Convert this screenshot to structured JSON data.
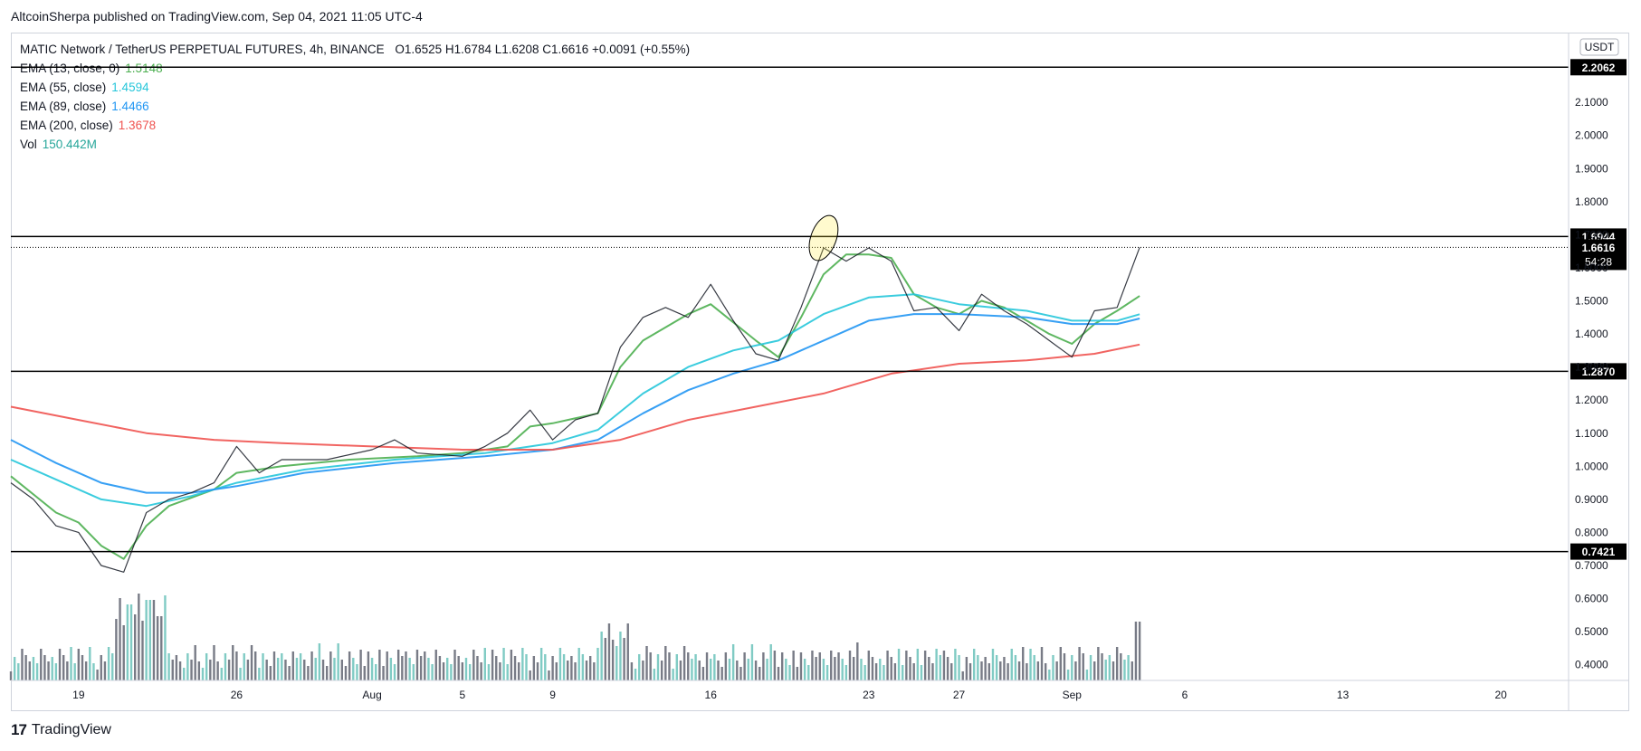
{
  "header": {
    "published": "AltcoinSherpa published on TradingView.com, Sep 04, 2021 11:05 UTC-4"
  },
  "legend": {
    "symbol": "MATIC Network / TetherUS PERPETUAL FUTURES, 4h, BINANCE",
    "ohlc": "O1.6525  H1.6784  L1.6208  C1.6616  +0.0091 (+0.55%)",
    "indicators": [
      {
        "label": "EMA (13, close, 0)",
        "value": "1.5148",
        "color": "#4caf50"
      },
      {
        "label": "EMA (55, close)",
        "value": "1.4594",
        "color": "#26c6da"
      },
      {
        "label": "EMA (89, close)",
        "value": "1.4466",
        "color": "#2196f3"
      },
      {
        "label": "EMA (200, close)",
        "value": "1.3678",
        "color": "#ef5350"
      },
      {
        "label": "Vol",
        "value": "150.442M",
        "color": "#26a69a"
      }
    ]
  },
  "footer": {
    "brand": "TradingView",
    "logo": "tradingview-logo-icon"
  },
  "chart_data": {
    "type": "line",
    "currency_label": "USDT",
    "ylim": [
      0.38,
      2.3
    ],
    "y_ticks": [
      0.4,
      0.5,
      0.6,
      0.7,
      0.8,
      0.9,
      1.0,
      1.1,
      1.2,
      1.3,
      1.4,
      1.5,
      1.6,
      1.7,
      1.8,
      1.9,
      2.0,
      2.1
    ],
    "y_tick_labels": [
      "0.4000",
      "0.5000",
      "0.6000",
      "0.7000",
      "0.8000",
      "0.9000",
      "1.0000",
      "1.1000",
      "1.2000",
      "1.3000",
      "1.4000",
      "1.5000",
      "1.6000",
      "1.7000",
      "1.8000",
      "1.9000",
      "2.0000",
      "2.1000"
    ],
    "x_range": [
      "2021-07-16",
      "2021-09-23"
    ],
    "x_ticks": [
      {
        "date": "2021-07-19",
        "label": "19"
      },
      {
        "date": "2021-07-26",
        "label": "26"
      },
      {
        "date": "2021-08-01",
        "label": "Aug"
      },
      {
        "date": "2021-08-05",
        "label": "5"
      },
      {
        "date": "2021-08-09",
        "label": "9"
      },
      {
        "date": "2021-08-16",
        "label": "16"
      },
      {
        "date": "2021-08-23",
        "label": "23"
      },
      {
        "date": "2021-08-27",
        "label": "27"
      },
      {
        "date": "2021-09-01",
        "label": "Sep"
      },
      {
        "date": "2021-09-06",
        "label": "6"
      },
      {
        "date": "2021-09-13",
        "label": "13"
      },
      {
        "date": "2021-09-20",
        "label": "20"
      }
    ],
    "horizontal_levels": [
      {
        "value": 2.2062,
        "label": "2.2062"
      },
      {
        "value": 1.6944,
        "label": "1.6944"
      },
      {
        "value": 1.287,
        "label": "1.2870"
      },
      {
        "value": 0.7421,
        "label": "0.7421"
      }
    ],
    "last_price": {
      "value": 1.6616,
      "label": "1.6616",
      "countdown": "54:28"
    },
    "highlight_ellipse": {
      "date": "2021-08-21",
      "center_value": 1.69
    },
    "series": [
      {
        "name": "EMA (13, close, 0)",
        "color": "#4caf50",
        "points": [
          [
            "2021-07-16",
            0.97
          ],
          [
            "2021-07-18",
            0.86
          ],
          [
            "2021-07-19",
            0.83
          ],
          [
            "2021-07-20",
            0.76
          ],
          [
            "2021-07-21",
            0.72
          ],
          [
            "2021-07-22",
            0.82
          ],
          [
            "2021-07-23",
            0.88
          ],
          [
            "2021-07-25",
            0.93
          ],
          [
            "2021-07-26",
            0.98
          ],
          [
            "2021-07-28",
            1.0
          ],
          [
            "2021-07-31",
            1.02
          ],
          [
            "2021-08-03",
            1.03
          ],
          [
            "2021-08-05",
            1.04
          ],
          [
            "2021-08-07",
            1.06
          ],
          [
            "2021-08-08",
            1.12
          ],
          [
            "2021-08-09",
            1.13
          ],
          [
            "2021-08-11",
            1.16
          ],
          [
            "2021-08-12",
            1.3
          ],
          [
            "2021-08-13",
            1.38
          ],
          [
            "2021-08-15",
            1.46
          ],
          [
            "2021-08-16",
            1.49
          ],
          [
            "2021-08-18",
            1.38
          ],
          [
            "2021-08-19",
            1.33
          ],
          [
            "2021-08-20",
            1.45
          ],
          [
            "2021-08-21",
            1.58
          ],
          [
            "2021-08-22",
            1.64
          ],
          [
            "2021-08-23",
            1.64
          ],
          [
            "2021-08-24",
            1.63
          ],
          [
            "2021-08-25",
            1.52
          ],
          [
            "2021-08-26",
            1.48
          ],
          [
            "2021-08-27",
            1.46
          ],
          [
            "2021-08-28",
            1.5
          ],
          [
            "2021-08-29",
            1.48
          ],
          [
            "2021-08-30",
            1.44
          ],
          [
            "2021-08-31",
            1.4
          ],
          [
            "2021-09-01",
            1.37
          ],
          [
            "2021-09-02",
            1.43
          ],
          [
            "2021-09-03",
            1.47
          ],
          [
            "2021-09-04",
            1.5148
          ]
        ]
      },
      {
        "name": "EMA (55, close)",
        "color": "#26c6da",
        "points": [
          [
            "2021-07-16",
            1.02
          ],
          [
            "2021-07-18",
            0.96
          ],
          [
            "2021-07-20",
            0.9
          ],
          [
            "2021-07-22",
            0.88
          ],
          [
            "2021-07-24",
            0.91
          ],
          [
            "2021-07-26",
            0.95
          ],
          [
            "2021-07-29",
            0.99
          ],
          [
            "2021-08-02",
            1.02
          ],
          [
            "2021-08-06",
            1.04
          ],
          [
            "2021-08-09",
            1.07
          ],
          [
            "2021-08-11",
            1.11
          ],
          [
            "2021-08-13",
            1.22
          ],
          [
            "2021-08-15",
            1.3
          ],
          [
            "2021-08-17",
            1.35
          ],
          [
            "2021-08-19",
            1.38
          ],
          [
            "2021-08-21",
            1.46
          ],
          [
            "2021-08-23",
            1.51
          ],
          [
            "2021-08-25",
            1.52
          ],
          [
            "2021-08-27",
            1.49
          ],
          [
            "2021-08-30",
            1.47
          ],
          [
            "2021-09-01",
            1.44
          ],
          [
            "2021-09-03",
            1.44
          ],
          [
            "2021-09-04",
            1.4594
          ]
        ]
      },
      {
        "name": "EMA (89, close)",
        "color": "#2196f3",
        "points": [
          [
            "2021-07-16",
            1.08
          ],
          [
            "2021-07-18",
            1.01
          ],
          [
            "2021-07-20",
            0.95
          ],
          [
            "2021-07-22",
            0.92
          ],
          [
            "2021-07-24",
            0.92
          ],
          [
            "2021-07-26",
            0.94
          ],
          [
            "2021-07-29",
            0.98
          ],
          [
            "2021-08-02",
            1.01
          ],
          [
            "2021-08-06",
            1.03
          ],
          [
            "2021-08-09",
            1.05
          ],
          [
            "2021-08-11",
            1.08
          ],
          [
            "2021-08-13",
            1.16
          ],
          [
            "2021-08-15",
            1.23
          ],
          [
            "2021-08-17",
            1.28
          ],
          [
            "2021-08-19",
            1.32
          ],
          [
            "2021-08-21",
            1.38
          ],
          [
            "2021-08-23",
            1.44
          ],
          [
            "2021-08-25",
            1.46
          ],
          [
            "2021-08-27",
            1.46
          ],
          [
            "2021-08-30",
            1.45
          ],
          [
            "2021-09-01",
            1.43
          ],
          [
            "2021-09-03",
            1.43
          ],
          [
            "2021-09-04",
            1.4466
          ]
        ]
      },
      {
        "name": "EMA (200, close)",
        "color": "#ef5350",
        "points": [
          [
            "2021-07-16",
            1.18
          ],
          [
            "2021-07-19",
            1.14
          ],
          [
            "2021-07-22",
            1.1
          ],
          [
            "2021-07-25",
            1.08
          ],
          [
            "2021-07-28",
            1.07
          ],
          [
            "2021-08-01",
            1.06
          ],
          [
            "2021-08-05",
            1.05
          ],
          [
            "2021-08-09",
            1.05
          ],
          [
            "2021-08-12",
            1.08
          ],
          [
            "2021-08-15",
            1.14
          ],
          [
            "2021-08-18",
            1.18
          ],
          [
            "2021-08-21",
            1.22
          ],
          [
            "2021-08-24",
            1.28
          ],
          [
            "2021-08-27",
            1.31
          ],
          [
            "2021-08-30",
            1.32
          ],
          [
            "2021-09-02",
            1.34
          ],
          [
            "2021-09-04",
            1.3678
          ]
        ]
      },
      {
        "name": "Price",
        "color": "#131722",
        "points": [
          [
            "2021-07-16",
            0.95
          ],
          [
            "2021-07-17",
            0.9
          ],
          [
            "2021-07-18",
            0.82
          ],
          [
            "2021-07-19",
            0.8
          ],
          [
            "2021-07-20",
            0.7
          ],
          [
            "2021-07-21",
            0.68
          ],
          [
            "2021-07-22",
            0.86
          ],
          [
            "2021-07-23",
            0.9
          ],
          [
            "2021-07-24",
            0.92
          ],
          [
            "2021-07-25",
            0.95
          ],
          [
            "2021-07-26",
            1.06
          ],
          [
            "2021-07-27",
            0.98
          ],
          [
            "2021-07-28",
            1.02
          ],
          [
            "2021-07-30",
            1.02
          ],
          [
            "2021-08-01",
            1.05
          ],
          [
            "2021-08-02",
            1.08
          ],
          [
            "2021-08-03",
            1.04
          ],
          [
            "2021-08-05",
            1.03
          ],
          [
            "2021-08-06",
            1.06
          ],
          [
            "2021-08-07",
            1.1
          ],
          [
            "2021-08-08",
            1.17
          ],
          [
            "2021-08-09",
            1.08
          ],
          [
            "2021-08-10",
            1.14
          ],
          [
            "2021-08-11",
            1.16
          ],
          [
            "2021-08-12",
            1.36
          ],
          [
            "2021-08-13",
            1.45
          ],
          [
            "2021-08-14",
            1.48
          ],
          [
            "2021-08-15",
            1.45
          ],
          [
            "2021-08-16",
            1.55
          ],
          [
            "2021-08-17",
            1.44
          ],
          [
            "2021-08-18",
            1.34
          ],
          [
            "2021-08-19",
            1.32
          ],
          [
            "2021-08-20",
            1.48
          ],
          [
            "2021-08-21",
            1.66
          ],
          [
            "2021-08-22",
            1.62
          ],
          [
            "2021-08-23",
            1.66
          ],
          [
            "2021-08-24",
            1.62
          ],
          [
            "2021-08-25",
            1.47
          ],
          [
            "2021-08-26",
            1.48
          ],
          [
            "2021-08-27",
            1.41
          ],
          [
            "2021-08-28",
            1.52
          ],
          [
            "2021-08-29",
            1.47
          ],
          [
            "2021-08-30",
            1.43
          ],
          [
            "2021-08-31",
            1.38
          ],
          [
            "2021-09-01",
            1.33
          ],
          [
            "2021-09-02",
            1.47
          ],
          [
            "2021-09-03",
            1.48
          ],
          [
            "2021-09-04",
            1.6616
          ]
        ]
      }
    ],
    "volume": {
      "color_up": "#80cbc4",
      "color_down": "#787b86"
    }
  }
}
